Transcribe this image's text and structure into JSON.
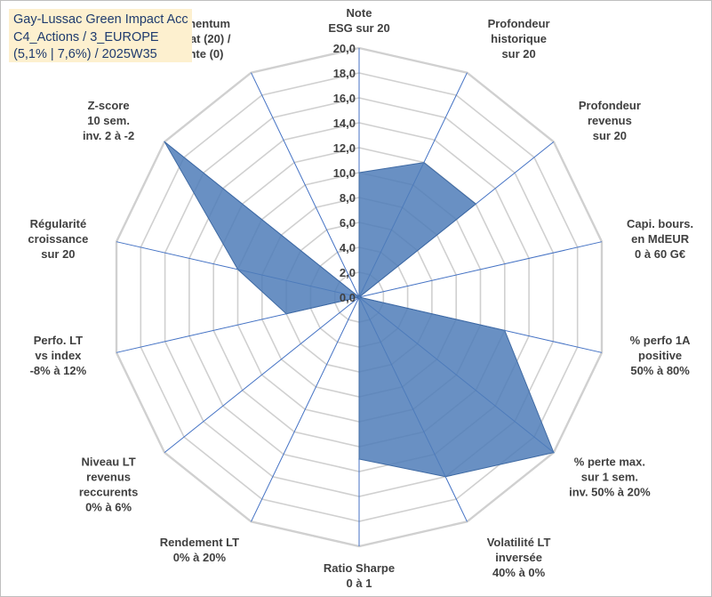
{
  "title": {
    "lines": [
      "Gay-Lussac Green Impact Acc",
      "C4_Actions / 3_EUROPE",
      "(5,1% | 7,6%) / 2025W35"
    ]
  },
  "colors": {
    "fill": "#4f7db8",
    "grid": "#d0d0d0",
    "axis": "#4472c4",
    "title_bg": "#fdf0cf",
    "title_text": "#1f3b6e"
  },
  "chart_data": {
    "type": "radar",
    "grid": true,
    "ylim": [
      0,
      20
    ],
    "ticks": [
      "0,0",
      "2,0",
      "4,0",
      "6,0",
      "8,0",
      "10,0",
      "12,0",
      "14,0",
      "16,0",
      "18,0",
      "20,0"
    ],
    "categories": [
      [
        "Note",
        "ESG sur 20"
      ],
      [
        "Profondeur",
        "historique",
        "sur 20"
      ],
      [
        "Profondeur",
        "revenus",
        "sur 20"
      ],
      [
        "Capi. bours.",
        "en MdEUR",
        "0 à 60 G€"
      ],
      [
        "% perfo 1A",
        "positive",
        "50% à 80%"
      ],
      [
        "% perte max.",
        "sur 1 sem.",
        "inv. 50% à 20%"
      ],
      [
        "Volatilité LT",
        "inversée",
        "40% à 0%"
      ],
      [
        "Ratio Sharpe",
        "0 à 1"
      ],
      [
        "Rendement LT",
        "0% à 20%"
      ],
      [
        "Niveau LT",
        "revenus",
        "reccurents",
        "0% à 6%"
      ],
      [
        "Perfo. LT",
        "vs index",
        "-8% à 12%"
      ],
      [
        "Régularité",
        "croissance",
        "sur 20"
      ],
      [
        "Z-score",
        "10 sem.",
        "inv. 2 à -2"
      ],
      [
        "Momentum",
        "Achat (20) /",
        "Vente (0)"
      ]
    ],
    "values": [
      10,
      12,
      12,
      0,
      12,
      20,
      16,
      13,
      0,
      0,
      6,
      10,
      20,
      0
    ]
  }
}
